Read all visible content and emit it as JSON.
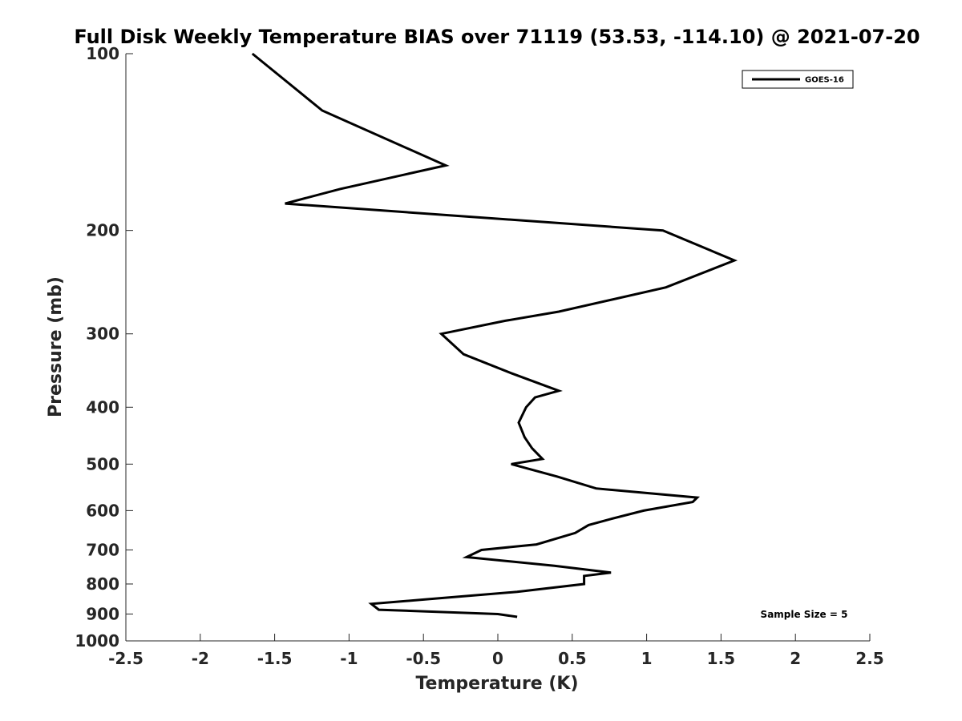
{
  "chart_data": {
    "type": "line",
    "title": "Full Disk Weekly Temperature BIAS over 71119 (53.53, -114.10) @ 2021-07-20",
    "xlabel": "Temperature (K)",
    "ylabel": "Pressure (mb)",
    "xlim": [
      -2.5,
      2.5
    ],
    "ylim": [
      100,
      1000
    ],
    "y_scale": "log",
    "y_reversed": true,
    "grid": false,
    "legend_position": "top-right",
    "x_ticks": [
      -2.5,
      -2,
      -1.5,
      -1,
      -0.5,
      0,
      0.5,
      1,
      1.5,
      2,
      2.5
    ],
    "x_tick_labels": [
      "-2.5",
      "-2",
      "-1.5",
      "-1",
      "-0.5",
      "0",
      "0.5",
      "1",
      "1.5",
      "2",
      "2.5"
    ],
    "y_ticks": [
      100,
      200,
      300,
      400,
      500,
      600,
      700,
      800,
      900,
      1000
    ],
    "y_tick_labels": [
      "100",
      "200",
      "300",
      "400",
      "500",
      "600",
      "700",
      "800",
      "900",
      "1000"
    ],
    "series": [
      {
        "name": "GOES-16",
        "color": "#000000",
        "points": [
          {
            "x": -1.65,
            "y": 100
          },
          {
            "x": -1.18,
            "y": 125
          },
          {
            "x": -0.35,
            "y": 155
          },
          {
            "x": -1.06,
            "y": 170
          },
          {
            "x": -1.43,
            "y": 180
          },
          {
            "x": 1.11,
            "y": 200
          },
          {
            "x": 1.59,
            "y": 225
          },
          {
            "x": 1.13,
            "y": 250
          },
          {
            "x": 0.41,
            "y": 275
          },
          {
            "x": 0.05,
            "y": 285
          },
          {
            "x": -0.38,
            "y": 300
          },
          {
            "x": -0.23,
            "y": 325
          },
          {
            "x": 0.09,
            "y": 350
          },
          {
            "x": 0.41,
            "y": 375
          },
          {
            "x": 0.25,
            "y": 385
          },
          {
            "x": 0.19,
            "y": 400
          },
          {
            "x": 0.14,
            "y": 425
          },
          {
            "x": 0.18,
            "y": 450
          },
          {
            "x": 0.23,
            "y": 470
          },
          {
            "x": 0.3,
            "y": 490
          },
          {
            "x": 0.09,
            "y": 500
          },
          {
            "x": 0.4,
            "y": 525
          },
          {
            "x": 0.66,
            "y": 550
          },
          {
            "x": 1.34,
            "y": 570
          },
          {
            "x": 1.31,
            "y": 580
          },
          {
            "x": 0.98,
            "y": 600
          },
          {
            "x": 0.76,
            "y": 620
          },
          {
            "x": 0.61,
            "y": 635
          },
          {
            "x": 0.52,
            "y": 655
          },
          {
            "x": 0.26,
            "y": 685
          },
          {
            "x": -0.11,
            "y": 700
          },
          {
            "x": -0.21,
            "y": 720
          },
          {
            "x": 0.38,
            "y": 745
          },
          {
            "x": 0.76,
            "y": 765
          },
          {
            "x": 0.58,
            "y": 775
          },
          {
            "x": 0.58,
            "y": 800
          },
          {
            "x": 0.13,
            "y": 825
          },
          {
            "x": -0.49,
            "y": 850
          },
          {
            "x": -0.85,
            "y": 865
          },
          {
            "x": -0.8,
            "y": 885
          },
          {
            "x": 0.0,
            "y": 900
          },
          {
            "x": 0.13,
            "y": 910
          }
        ]
      }
    ],
    "annotation": "Sample Size = 5"
  }
}
